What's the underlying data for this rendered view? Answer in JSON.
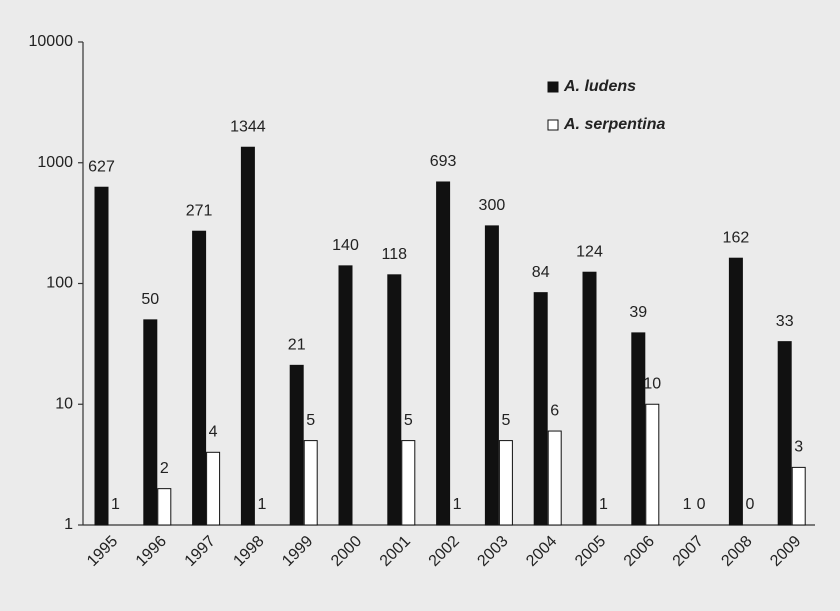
{
  "chart_data": {
    "type": "bar",
    "log_scale": true,
    "categories": [
      "1995",
      "1996",
      "1997",
      "1998",
      "1999",
      "2000",
      "2001",
      "2002",
      "2003",
      "2004",
      "2005",
      "2006",
      "2007",
      "2008",
      "2009"
    ],
    "series": [
      {
        "name": "A. ludens",
        "color": "#111111",
        "values": [
          627,
          50,
          271,
          1344,
          21,
          140,
          118,
          693,
          300,
          84,
          124,
          39,
          1,
          162,
          33
        ]
      },
      {
        "name": "A. serpentina",
        "color": "#ffffff",
        "values": [
          1,
          2,
          4,
          1,
          5,
          null,
          5,
          1,
          5,
          6,
          1,
          10,
          0,
          0,
          3
        ]
      }
    ],
    "ylim": [
      1,
      10000
    ],
    "yticks": [
      1,
      10,
      100,
      1000,
      10000
    ],
    "legend": "upper right"
  }
}
